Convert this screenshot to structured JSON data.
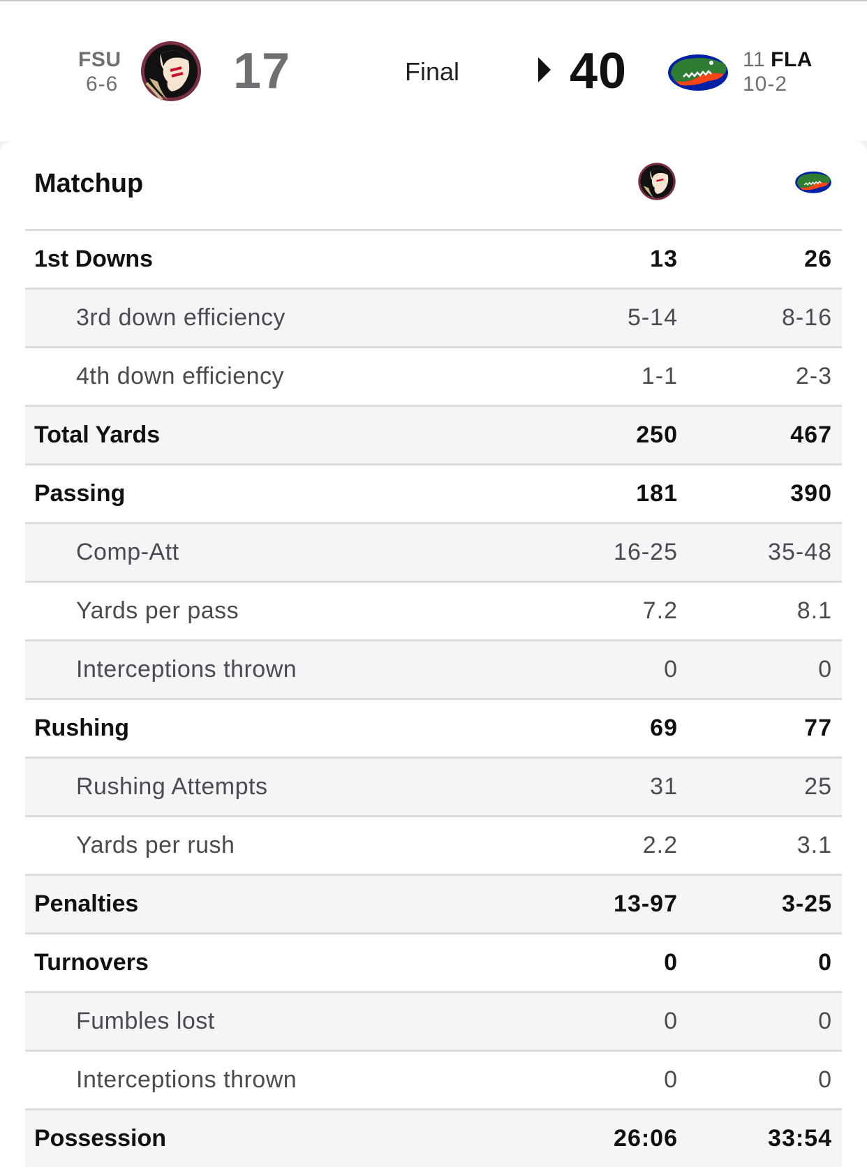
{
  "game": {
    "status": "Final",
    "away": {
      "abbr": "FSU",
      "record": "6-6",
      "score": "17",
      "logo_icon": "fsu-seminole-logo-icon"
    },
    "home": {
      "rank": "11",
      "abbr": "FLA",
      "record": "10-2",
      "score": "40",
      "logo_icon": "gators-logo-icon",
      "winner": true
    }
  },
  "matchup": {
    "title": "Matchup",
    "rows": [
      {
        "label": "1st Downs",
        "away": "13",
        "home": "26",
        "type": "main"
      },
      {
        "label": "3rd down efficiency",
        "away": "5-14",
        "home": "8-16",
        "type": "sub"
      },
      {
        "label": "4th down efficiency",
        "away": "1-1",
        "home": "2-3",
        "type": "sub"
      },
      {
        "label": "Total Yards",
        "away": "250",
        "home": "467",
        "type": "main"
      },
      {
        "label": "Passing",
        "away": "181",
        "home": "390",
        "type": "main"
      },
      {
        "label": "Comp-Att",
        "away": "16-25",
        "home": "35-48",
        "type": "sub"
      },
      {
        "label": "Yards per pass",
        "away": "7.2",
        "home": "8.1",
        "type": "sub"
      },
      {
        "label": "Interceptions thrown",
        "away": "0",
        "home": "0",
        "type": "sub"
      },
      {
        "label": "Rushing",
        "away": "69",
        "home": "77",
        "type": "main"
      },
      {
        "label": "Rushing Attempts",
        "away": "31",
        "home": "25",
        "type": "sub"
      },
      {
        "label": "Yards per rush",
        "away": "2.2",
        "home": "3.1",
        "type": "sub"
      },
      {
        "label": "Penalties",
        "away": "13-97",
        "home": "3-25",
        "type": "main"
      },
      {
        "label": "Turnovers",
        "away": "0",
        "home": "0",
        "type": "main"
      },
      {
        "label": "Fumbles lost",
        "away": "0",
        "home": "0",
        "type": "sub"
      },
      {
        "label": "Interceptions thrown",
        "away": "0",
        "home": "0",
        "type": "sub"
      },
      {
        "label": "Possession",
        "away": "26:06",
        "home": "33:54",
        "type": "main"
      }
    ]
  },
  "colors": {
    "fsu_garnet": "#782f40",
    "fsu_gold": "#ceb888",
    "gators_blue": "#0021a5",
    "gators_orange": "#fa4616",
    "gators_green": "#2e7d32"
  }
}
